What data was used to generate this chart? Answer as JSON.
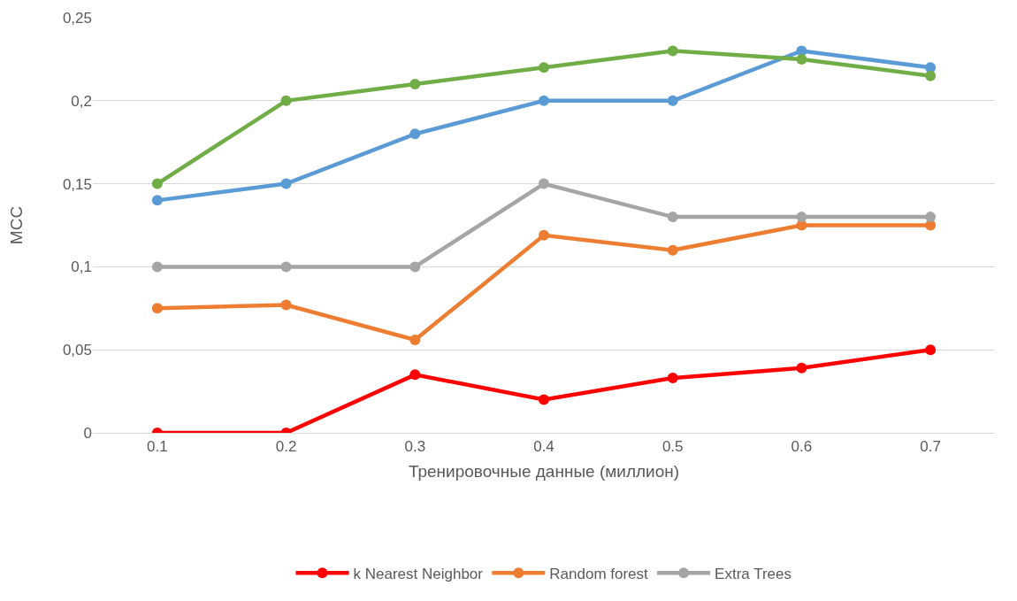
{
  "chart_data": {
    "type": "line",
    "xlabel": "Тренировочные данные (миллион)",
    "ylabel": "MCC",
    "categories": [
      "0.1",
      "0.2",
      "0.3",
      "0.4",
      "0.5",
      "0.6",
      "0.7"
    ],
    "series": [
      {
        "name": "k Nearest Neighbor",
        "color": "#ff0000",
        "values": [
          0,
          0,
          0.035,
          0.02,
          0.033,
          0.039,
          0.05
        ]
      },
      {
        "name": "Random forest",
        "color": "#ed7d31",
        "values": [
          0.075,
          0.077,
          0.056,
          0.119,
          0.11,
          0.125,
          0.125
        ]
      },
      {
        "name": "Extra Trees",
        "color": "#a5a5a5",
        "values": [
          0.1,
          0.1,
          0.1,
          0.15,
          0.13,
          0.13,
          0.13
        ]
      },
      {
        "color": "#5b9bd5",
        "values": [
          0.14,
          0.15,
          0.18,
          0.2,
          0.2,
          0.23,
          0.22
        ]
      },
      {
        "color": "#70ad47",
        "values": [
          0.15,
          0.2,
          0.21,
          0.22,
          0.23,
          0.225,
          0.215
        ]
      }
    ],
    "ylim": [
      0,
      0.25
    ],
    "yticks": [
      0,
      {
        "value": 0.05,
        "label": "0,05"
      },
      {
        "value": 0.1,
        "label": "0,1"
      },
      {
        "value": 0.15,
        "label": "0,15"
      },
      {
        "value": 0.2,
        "label": "0,2"
      },
      {
        "value": 0.25,
        "label": "0,25"
      }
    ],
    "grid": "y",
    "legend": "bottom",
    "marker": "circle",
    "line_style": "solid"
  }
}
